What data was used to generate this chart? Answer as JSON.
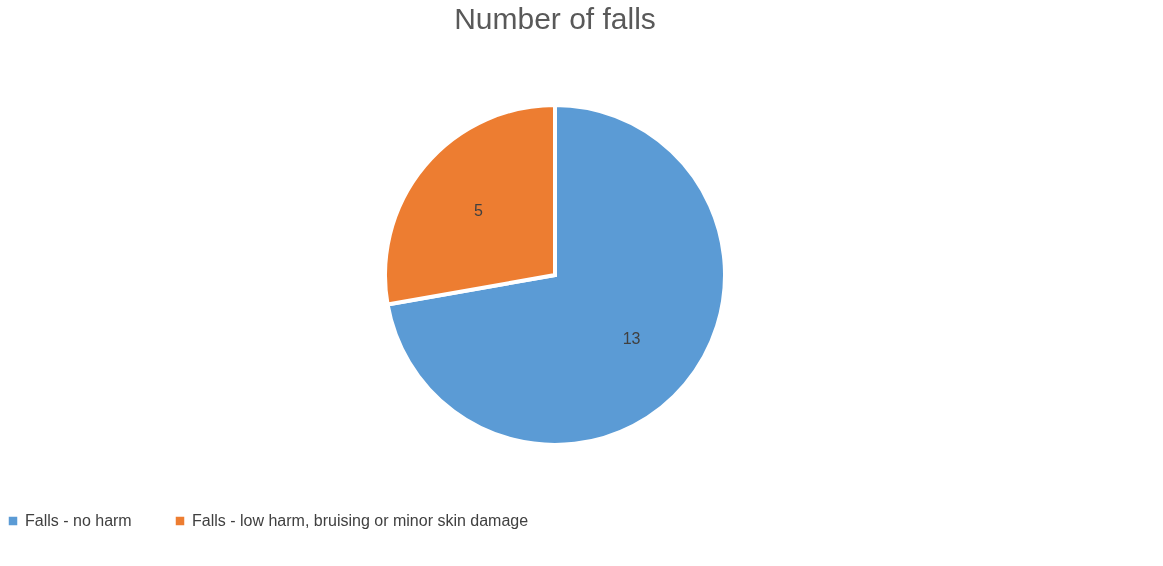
{
  "chart_data": {
    "type": "pie",
    "title": "Number of falls",
    "categories": [
      "Falls - no harm",
      "Falls - low harm, bruising or minor skin damage"
    ],
    "values": [
      13,
      5
    ],
    "colors": [
      "#5b9bd5",
      "#ed7d31"
    ],
    "data_labels": true,
    "legend": "bottom"
  }
}
